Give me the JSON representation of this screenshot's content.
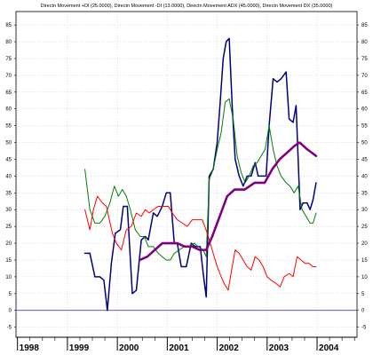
{
  "chart_data": {
    "type": "line",
    "title": "Directn Movement +DI (25.0000), Directn Movement -DI (13.0000), Directn Movement ADX (45.0000), Directn Movement DX (35.0000)",
    "xlabel": "",
    "ylabel": "",
    "grid": true,
    "legend": "none",
    "x_range": [
      1997.97,
      2004.8
    ],
    "ylim": [
      -8,
      89
    ],
    "y_ticks": [
      -5,
      0,
      5,
      10,
      15,
      20,
      25,
      30,
      35,
      40,
      45,
      50,
      55,
      60,
      65,
      70,
      75,
      80,
      85
    ],
    "x_labels": [
      "1998",
      "1999",
      "2000",
      "2001",
      "2002",
      "2003",
      "2004"
    ],
    "reference_line": 0,
    "series": [
      {
        "color": "#000080",
        "width": 1.5,
        "points": [
          [
            1999.35,
            17
          ],
          [
            1999.45,
            17
          ],
          [
            1999.55,
            10
          ],
          [
            1999.65,
            10
          ],
          [
            1999.73,
            9
          ],
          [
            1999.8,
            0
          ],
          [
            1999.88,
            14
          ],
          [
            1999.96,
            23
          ],
          [
            2000.06,
            24
          ],
          [
            2000.12,
            31
          ],
          [
            2000.2,
            31
          ],
          [
            2000.3,
            5
          ],
          [
            2000.38,
            6
          ],
          [
            2000.48,
            21
          ],
          [
            2000.56,
            22
          ],
          [
            2000.62,
            21
          ],
          [
            2000.72,
            29
          ],
          [
            2000.8,
            28
          ],
          [
            2000.9,
            31
          ],
          [
            2000.98,
            35
          ],
          [
            2001.06,
            35
          ],
          [
            2001.14,
            20
          ],
          [
            2001.2,
            20
          ],
          [
            2001.28,
            13
          ],
          [
            2001.38,
            13
          ],
          [
            2001.48,
            20
          ],
          [
            2001.56,
            19
          ],
          [
            2001.66,
            19
          ],
          [
            2001.72,
            11
          ],
          [
            2001.78,
            4
          ],
          [
            2001.84,
            40
          ],
          [
            2001.92,
            42
          ],
          [
            2002.0,
            50
          ],
          [
            2002.06,
            62
          ],
          [
            2002.12,
            75
          ],
          [
            2002.18,
            80
          ],
          [
            2002.24,
            81
          ],
          [
            2002.3,
            61
          ],
          [
            2002.36,
            45
          ],
          [
            2002.44,
            40
          ],
          [
            2002.52,
            37
          ],
          [
            2002.6,
            40
          ],
          [
            2002.68,
            40
          ],
          [
            2002.76,
            44
          ],
          [
            2002.82,
            40
          ],
          [
            2002.9,
            40
          ],
          [
            2002.98,
            40
          ],
          [
            2003.04,
            55
          ],
          [
            2003.12,
            69
          ],
          [
            2003.2,
            68
          ],
          [
            2003.28,
            69
          ],
          [
            2003.38,
            71
          ],
          [
            2003.44,
            57
          ],
          [
            2003.52,
            56
          ],
          [
            2003.58,
            61
          ],
          [
            2003.66,
            30
          ],
          [
            2003.72,
            32
          ],
          [
            2003.8,
            32
          ],
          [
            2003.86,
            30
          ],
          [
            2003.92,
            33
          ],
          [
            2003.98,
            38
          ]
        ]
      },
      {
        "color": "#008000",
        "width": 1,
        "points": [
          [
            1999.35,
            42
          ],
          [
            1999.45,
            30
          ],
          [
            1999.55,
            26
          ],
          [
            1999.65,
            26
          ],
          [
            1999.75,
            28
          ],
          [
            1999.85,
            32
          ],
          [
            1999.94,
            37
          ],
          [
            2000.02,
            34
          ],
          [
            2000.1,
            36
          ],
          [
            2000.18,
            34
          ],
          [
            2000.26,
            30
          ],
          [
            2000.36,
            24
          ],
          [
            2000.46,
            22
          ],
          [
            2000.54,
            22
          ],
          [
            2000.62,
            19
          ],
          [
            2000.72,
            19
          ],
          [
            2000.82,
            17
          ],
          [
            2000.9,
            16
          ],
          [
            2000.98,
            15
          ],
          [
            2001.06,
            15
          ],
          [
            2001.14,
            17
          ],
          [
            2001.24,
            18
          ],
          [
            2001.34,
            19
          ],
          [
            2001.44,
            19
          ],
          [
            2001.54,
            20
          ],
          [
            2001.62,
            19
          ],
          [
            2001.72,
            18
          ],
          [
            2001.78,
            16
          ],
          [
            2001.84,
            39
          ],
          [
            2001.92,
            42
          ],
          [
            2002.0,
            48
          ],
          [
            2002.08,
            53
          ],
          [
            2002.16,
            62
          ],
          [
            2002.24,
            63
          ],
          [
            2002.32,
            57
          ],
          [
            2002.4,
            46
          ],
          [
            2002.48,
            41
          ],
          [
            2002.56,
            38
          ],
          [
            2002.64,
            40
          ],
          [
            2002.72,
            43
          ],
          [
            2002.8,
            44
          ],
          [
            2002.88,
            46
          ],
          [
            2002.96,
            48
          ],
          [
            2003.04,
            55
          ],
          [
            2003.12,
            48
          ],
          [
            2003.2,
            43
          ],
          [
            2003.28,
            40
          ],
          [
            2003.38,
            38
          ],
          [
            2003.46,
            37
          ],
          [
            2003.54,
            35
          ],
          [
            2003.62,
            37
          ],
          [
            2003.7,
            30
          ],
          [
            2003.78,
            28
          ],
          [
            2003.86,
            26
          ],
          [
            2003.92,
            26
          ],
          [
            2003.98,
            29
          ]
        ]
      },
      {
        "color": "#ff0000",
        "width": 1,
        "points": [
          [
            1999.35,
            30
          ],
          [
            1999.45,
            24
          ],
          [
            1999.52,
            30
          ],
          [
            1999.6,
            34
          ],
          [
            1999.7,
            32
          ],
          [
            1999.78,
            31
          ],
          [
            1999.84,
            27
          ],
          [
            1999.9,
            23
          ],
          [
            1999.98,
            20
          ],
          [
            2000.08,
            18
          ],
          [
            2000.18,
            24
          ],
          [
            2000.28,
            25
          ],
          [
            2000.38,
            29
          ],
          [
            2000.48,
            28
          ],
          [
            2000.56,
            30
          ],
          [
            2000.64,
            29
          ],
          [
            2000.72,
            30
          ],
          [
            2000.82,
            31
          ],
          [
            2000.92,
            31
          ],
          [
            2001.02,
            31
          ],
          [
            2001.1,
            29
          ],
          [
            2001.2,
            27
          ],
          [
            2001.3,
            26
          ],
          [
            2001.4,
            25
          ],
          [
            2001.5,
            27
          ],
          [
            2001.6,
            27
          ],
          [
            2001.7,
            27
          ],
          [
            2001.8,
            23
          ],
          [
            2001.9,
            18
          ],
          [
            2002.0,
            13
          ],
          [
            2002.08,
            10
          ],
          [
            2002.14,
            8
          ],
          [
            2002.22,
            6
          ],
          [
            2002.3,
            13
          ],
          [
            2002.36,
            18
          ],
          [
            2002.44,
            17
          ],
          [
            2002.52,
            15
          ],
          [
            2002.6,
            13
          ],
          [
            2002.68,
            12
          ],
          [
            2002.76,
            16
          ],
          [
            2002.84,
            15
          ],
          [
            2002.92,
            13
          ],
          [
            2003.0,
            10
          ],
          [
            2003.08,
            9
          ],
          [
            2003.18,
            8
          ],
          [
            2003.26,
            7
          ],
          [
            2003.34,
            10
          ],
          [
            2003.44,
            11
          ],
          [
            2003.52,
            10
          ],
          [
            2003.6,
            16
          ],
          [
            2003.68,
            15
          ],
          [
            2003.76,
            14
          ],
          [
            2003.84,
            14
          ],
          [
            2003.92,
            13
          ],
          [
            2003.98,
            13
          ]
        ]
      },
      {
        "color": "#800080",
        "width": 2.6,
        "points": [
          [
            2000.45,
            15
          ],
          [
            2000.6,
            16
          ],
          [
            2000.75,
            18
          ],
          [
            2000.9,
            20
          ],
          [
            2001.05,
            20
          ],
          [
            2001.2,
            20
          ],
          [
            2001.35,
            19
          ],
          [
            2001.5,
            19
          ],
          [
            2001.65,
            18
          ],
          [
            2001.78,
            18
          ],
          [
            2001.9,
            22
          ],
          [
            2002.05,
            28
          ],
          [
            2002.2,
            34
          ],
          [
            2002.35,
            36
          ],
          [
            2002.55,
            36
          ],
          [
            2002.75,
            38
          ],
          [
            2002.95,
            38
          ],
          [
            2003.1,
            42
          ],
          [
            2003.25,
            45
          ],
          [
            2003.4,
            47
          ],
          [
            2003.55,
            49
          ],
          [
            2003.65,
            50
          ],
          [
            2003.8,
            48
          ],
          [
            2003.98,
            46
          ]
        ]
      }
    ]
  }
}
